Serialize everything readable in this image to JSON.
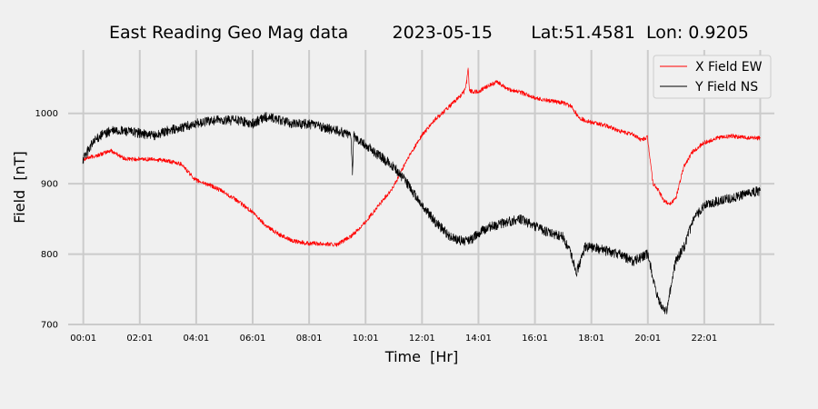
{
  "chart_data": {
    "type": "line",
    "title": "East Reading Geo Mag data        2023-05-15       Lat:51.4581  Lon: 0.9205",
    "xlabel": "Time  [Hr]",
    "ylabel": "Field  [nT]",
    "x_unit": "hour",
    "xlim": [
      -0.52,
      24.5
    ],
    "ylim": [
      700,
      1090
    ],
    "x_ticks": [
      {
        "value": 0.0167,
        "label": "00:01"
      },
      {
        "value": 2.0167,
        "label": "02:01"
      },
      {
        "value": 4.0167,
        "label": "04:01"
      },
      {
        "value": 6.0167,
        "label": "06:01"
      },
      {
        "value": 8.0167,
        "label": "08:01"
      },
      {
        "value": 10.0167,
        "label": "10:01"
      },
      {
        "value": 12.0167,
        "label": "12:01"
      },
      {
        "value": 14.0167,
        "label": "14:01"
      },
      {
        "value": 16.0167,
        "label": "16:01"
      },
      {
        "value": 18.0167,
        "label": "18:01"
      },
      {
        "value": 20.0167,
        "label": "20:01"
      },
      {
        "value": 22.0167,
        "label": "22:01"
      }
    ],
    "y_ticks": [
      700,
      800,
      900,
      1000
    ],
    "vgrid_x": [
      0.0167,
      2.0167,
      4.0167,
      6.0167,
      8.0167,
      10.0167,
      12.0167,
      14.0167,
      16.0167,
      18.0167,
      20.0167,
      22.0167,
      24.0
    ],
    "grid": true,
    "legend_position": "top-right",
    "series": [
      {
        "name": "X Field EW",
        "color": "#ff0000",
        "x": [
          0,
          0.5,
          1.0,
          1.5,
          2.0,
          2.5,
          3.0,
          3.5,
          3.7,
          4.0,
          4.5,
          5.0,
          5.5,
          6.0,
          6.5,
          7.0,
          7.5,
          8.0,
          8.5,
          9.0,
          9.5,
          10.0,
          10.5,
          11.0,
          11.5,
          12.0,
          12.5,
          13.0,
          13.5,
          13.6,
          13.65,
          13.7,
          14.0,
          14.3,
          14.7,
          15.0,
          15.5,
          16.0,
          16.5,
          17.0,
          17.3,
          17.6,
          18.0,
          18.5,
          19.0,
          19.5,
          19.8,
          20.0,
          20.1,
          20.2,
          20.4,
          20.6,
          20.8,
          21.0,
          21.3,
          21.6,
          22.0,
          22.5,
          23.0,
          23.5,
          24.0
        ],
        "y": [
          935,
          940,
          947,
          935,
          935,
          935,
          932,
          928,
          918,
          905,
          898,
          888,
          875,
          860,
          840,
          827,
          818,
          815,
          815,
          813,
          825,
          845,
          870,
          895,
          935,
          968,
          992,
          1010,
          1030,
          1045,
          1065,
          1032,
          1030,
          1038,
          1045,
          1035,
          1030,
          1022,
          1018,
          1015,
          1010,
          993,
          987,
          983,
          975,
          970,
          962,
          966,
          935,
          900,
          890,
          875,
          872,
          878,
          925,
          945,
          958,
          965,
          968,
          965,
          965
        ]
      },
      {
        "name": "Y Field NS",
        "color": "#000000",
        "x": [
          0,
          0.3,
          0.6,
          1.0,
          1.5,
          2.0,
          2.5,
          3.0,
          3.5,
          4.0,
          4.5,
          5.0,
          5.5,
          6.0,
          6.5,
          7.0,
          7.5,
          8.0,
          8.5,
          9.0,
          9.5,
          9.55,
          9.6,
          10.0,
          10.5,
          11.0,
          11.5,
          12.0,
          12.5,
          13.0,
          13.5,
          13.8,
          14.0,
          14.5,
          15.0,
          15.5,
          16.0,
          16.5,
          17.0,
          17.3,
          17.5,
          17.8,
          18.0,
          18.5,
          19.0,
          19.5,
          20.0,
          20.1,
          20.3,
          20.5,
          20.7,
          20.8,
          21.0,
          21.3,
          21.6,
          22.0,
          22.5,
          23.0,
          23.5,
          24.0
        ],
        "y": [
          935,
          955,
          968,
          975,
          975,
          972,
          968,
          975,
          980,
          985,
          990,
          990,
          990,
          985,
          995,
          990,
          985,
          985,
          980,
          975,
          970,
          915,
          968,
          955,
          940,
          925,
          900,
          870,
          845,
          825,
          818,
          822,
          830,
          840,
          845,
          850,
          840,
          830,
          825,
          800,
          775,
          810,
          810,
          805,
          800,
          790,
          800,
          785,
          745,
          725,
          720,
          745,
          790,
          810,
          845,
          870,
          875,
          880,
          885,
          890
        ]
      }
    ]
  }
}
